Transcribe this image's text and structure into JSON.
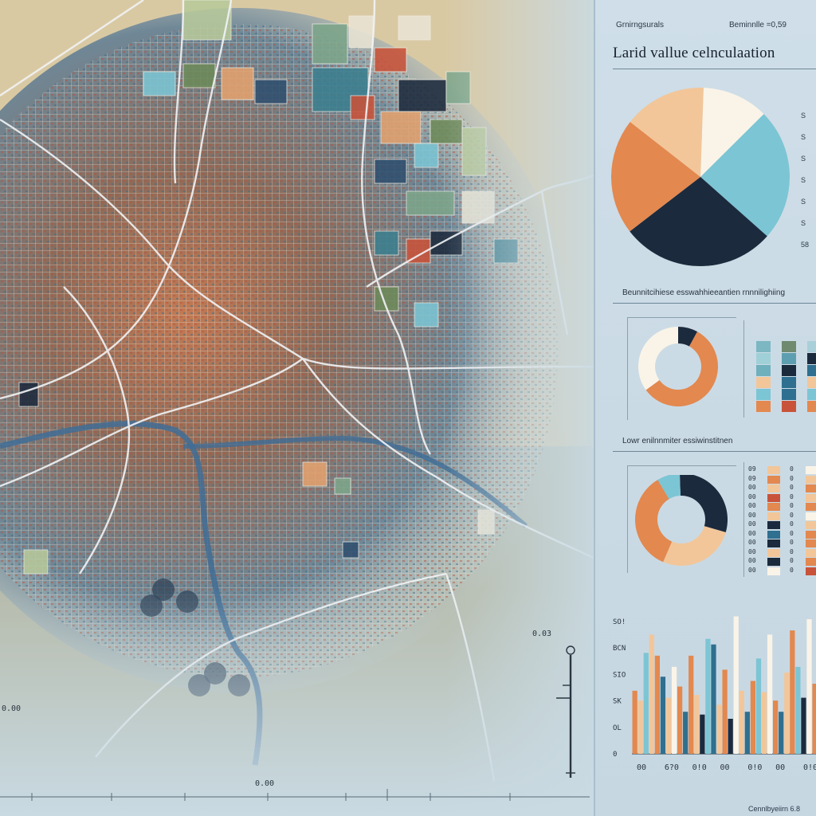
{
  "panel": {
    "header_label_left": "Grnirngsurals",
    "header_label_right": "Beminnlle =0,59",
    "title": "Larid vallue celnculaation",
    "section2_label": "Beunnitcihiese esswahhieeantien rnnnilighiing",
    "section3_label": "Lowr enilnnmiter essiwinstitnen",
    "footer_label": "Cennlbyeiirn 6.8",
    "colors": {
      "orange": "#e3884f",
      "peach": "#f2c699",
      "teal": "#7cc5d4",
      "navy": "#1c2a3d",
      "cream": "#faf4e8",
      "blue": "#2f6f8f",
      "red": "#c9533a"
    }
  },
  "map": {
    "scale_label": "0.03",
    "corner_label": "0.00",
    "left_label": "0.00",
    "north_icon": "compass-icon"
  },
  "pie1": {
    "slices": [
      {
        "value": 12,
        "color": "#faf4e8"
      },
      {
        "value": 24,
        "color": "#7cc5d4"
      },
      {
        "value": 28,
        "color": "#1c2a3d"
      },
      {
        "value": 21,
        "color": "#e3884f"
      },
      {
        "value": 15,
        "color": "#f2c699"
      }
    ],
    "side_labels": [
      "S",
      "S",
      "S",
      "S",
      "S",
      "S",
      "58"
    ]
  },
  "donut1": {
    "slices": [
      {
        "value": 8,
        "color": "#1c2a3d"
      },
      {
        "value": 57,
        "color": "#e3884f"
      },
      {
        "value": 35,
        "color": "#faf4e8"
      }
    ]
  },
  "donut2": {
    "slices": [
      {
        "value": 30,
        "color": "#1c2a3d"
      },
      {
        "value": 27,
        "color": "#f2c699"
      },
      {
        "value": 35,
        "color": "#e3884f"
      },
      {
        "value": 8,
        "color": "#7cc5d4"
      }
    ]
  },
  "swatch_columns": [
    [
      "#7cb7c2",
      "#9fd0d8",
      "#6fb0bd",
      "#f2c699",
      "#7cc5d4",
      "#e3884f"
    ],
    [
      "#6f8a6f",
      "#5d9fb0",
      "#1c2a3d",
      "#2f6f8f",
      "#2f6f8f",
      "#c9533a"
    ],
    [
      "#a9cfd8",
      "#1c2a3d",
      "#2f6f8f",
      "#f2c699",
      "#7cc5d4",
      "#e3884f"
    ]
  ],
  "legend_table": {
    "col1_labels": [
      "09",
      "09",
      "00",
      "00",
      "00",
      "00",
      "00",
      "00",
      "00",
      "00",
      "00",
      "00"
    ],
    "col2_colors": [
      "#f2c699",
      "#e3884f",
      "#f2c699",
      "#c9533a",
      "#e3884f",
      "#f2c699",
      "#1c2a3d",
      "#2f6f8f",
      "#1c2a3d",
      "#f2c699",
      "#1c2a3d",
      "#faf4e8"
    ],
    "col3_labels": [
      "0",
      "0",
      "0",
      "0",
      "0",
      "0",
      "0",
      "0",
      "0",
      "0",
      "0",
      "0"
    ],
    "col4_colors": [
      "#faf4e8",
      "#f2c699",
      "#e3884f",
      "#f2c699",
      "#e3884f",
      "#faf4e8",
      "#f2c699",
      "#e3884f",
      "#e3884f",
      "#f2c699",
      "#e3884f",
      "#c9533a"
    ]
  },
  "bar_chart": {
    "y_tick_labels": [
      "SO!",
      "BCN",
      "SIO",
      "SK",
      "OL",
      "0"
    ],
    "x_tick_labels": [
      "00",
      "6?0",
      "0!0",
      "00",
      "0!0",
      "00",
      "0!0"
    ],
    "bars": [
      {
        "value": 45,
        "color": "#e3884f"
      },
      {
        "value": 38,
        "color": "#f2c699"
      },
      {
        "value": 72,
        "color": "#7cc5d4"
      },
      {
        "value": 85,
        "color": "#f2c699"
      },
      {
        "value": 70,
        "color": "#e3884f"
      },
      {
        "value": 55,
        "color": "#2f6f8f"
      },
      {
        "value": 40,
        "color": "#f2c699"
      },
      {
        "value": 62,
        "color": "#faf4e8"
      },
      {
        "value": 48,
        "color": "#e3884f"
      },
      {
        "value": 30,
        "color": "#2f6f8f"
      },
      {
        "value": 70,
        "color": "#e3884f"
      },
      {
        "value": 42,
        "color": "#f2c699"
      },
      {
        "value": 28,
        "color": "#1c2a3d"
      },
      {
        "value": 82,
        "color": "#7cc5d4"
      },
      {
        "value": 78,
        "color": "#2f6f8f"
      },
      {
        "value": 35,
        "color": "#f2c699"
      },
      {
        "value": 60,
        "color": "#e3884f"
      },
      {
        "value": 25,
        "color": "#1c2a3d"
      },
      {
        "value": 98,
        "color": "#faf4e8"
      },
      {
        "value": 45,
        "color": "#f2c699"
      },
      {
        "value": 30,
        "color": "#2f6f8f"
      },
      {
        "value": 52,
        "color": "#e3884f"
      },
      {
        "value": 68,
        "color": "#7cc5d4"
      },
      {
        "value": 44,
        "color": "#f2c699"
      },
      {
        "value": 85,
        "color": "#faf4e8"
      },
      {
        "value": 38,
        "color": "#e3884f"
      },
      {
        "value": 30,
        "color": "#2f6f8f"
      },
      {
        "value": 58,
        "color": "#f2c699"
      },
      {
        "value": 88,
        "color": "#e3884f"
      },
      {
        "value": 62,
        "color": "#7cc5d4"
      },
      {
        "value": 40,
        "color": "#1c2a3d"
      },
      {
        "value": 96,
        "color": "#faf4e8"
      },
      {
        "value": 50,
        "color": "#e3884f"
      }
    ]
  }
}
